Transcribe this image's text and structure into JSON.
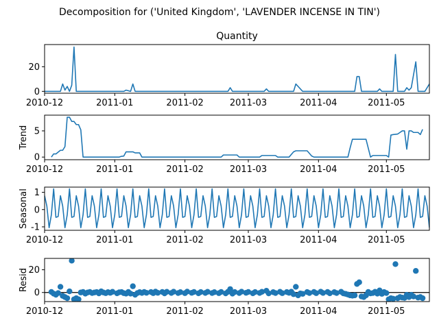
{
  "figure_title": "Decomposition for ('United Kingdom', 'LAVENDER INCENSE IN TIN')",
  "colors": {
    "line": "#1f77b4",
    "axis": "#000000",
    "zero_line": "#000000"
  },
  "x_tick_labels": [
    "2010-12",
    "2011-01",
    "2011-02",
    "2011-03",
    "2011-04",
    "2011-05"
  ],
  "chart_data": [
    {
      "type": "line",
      "title": "Quantity",
      "ylabel": "",
      "ylim": [
        -1.5,
        38
      ],
      "yticks": [
        0,
        20
      ],
      "xlim": [
        "2010-12-01",
        "2011-05-20"
      ],
      "x_ticks": [
        "2010-12-01",
        "2011-01-01",
        "2011-02-01",
        "2011-03-01",
        "2011-04-01",
        "2011-05-01"
      ],
      "points": [
        [
          "2010-12-01",
          0
        ],
        [
          "2010-12-08",
          0
        ],
        [
          "2010-12-09",
          6
        ],
        [
          "2010-12-10",
          1
        ],
        [
          "2010-12-11",
          4
        ],
        [
          "2010-12-12",
          0
        ],
        [
          "2010-12-13",
          5
        ],
        [
          "2010-12-14",
          36
        ],
        [
          "2010-12-15",
          0
        ],
        [
          "2011-01-05",
          0
        ],
        [
          "2011-01-06",
          1
        ],
        [
          "2011-01-08",
          0
        ],
        [
          "2011-01-09",
          6
        ],
        [
          "2011-01-10",
          0
        ],
        [
          "2011-02-20",
          0
        ],
        [
          "2011-02-21",
          3
        ],
        [
          "2011-02-22",
          0
        ],
        [
          "2011-03-08",
          0
        ],
        [
          "2011-03-09",
          2
        ],
        [
          "2011-03-10",
          0
        ],
        [
          "2011-03-21",
          0
        ],
        [
          "2011-03-22",
          6
        ],
        [
          "2011-03-25",
          0
        ],
        [
          "2011-04-17",
          0
        ],
        [
          "2011-04-18",
          12
        ],
        [
          "2011-04-19",
          12
        ],
        [
          "2011-04-20",
          0
        ],
        [
          "2011-04-27",
          0
        ],
        [
          "2011-04-28",
          2
        ],
        [
          "2011-04-29",
          0
        ],
        [
          "2011-05-04",
          0
        ],
        [
          "2011-05-05",
          30
        ],
        [
          "2011-05-06",
          0
        ],
        [
          "2011-05-09",
          0
        ],
        [
          "2011-05-10",
          3
        ],
        [
          "2011-05-11",
          1
        ],
        [
          "2011-05-12",
          3
        ],
        [
          "2011-05-14",
          24
        ],
        [
          "2011-05-15",
          0
        ],
        [
          "2011-05-18",
          0
        ],
        [
          "2011-05-20",
          6
        ]
      ]
    },
    {
      "type": "line",
      "title": "",
      "ylabel": "Trend",
      "ylim": [
        -0.5,
        8
      ],
      "yticks": [
        0,
        5
      ],
      "xlim": [
        "2010-12-01",
        "2011-05-20"
      ],
      "x_ticks": [
        "2010-12-01",
        "2011-01-01",
        "2011-02-01",
        "2011-03-01",
        "2011-04-01",
        "2011-05-01"
      ],
      "points": [
        [
          "2010-12-04",
          0
        ],
        [
          "2010-12-05",
          0.6
        ],
        [
          "2010-12-06",
          0.6
        ],
        [
          "2010-12-08",
          1.3
        ],
        [
          "2010-12-09",
          1.3
        ],
        [
          "2010-12-10",
          2.0
        ],
        [
          "2010-12-11",
          7.6
        ],
        [
          "2010-12-12",
          7.6
        ],
        [
          "2010-12-13",
          6.8
        ],
        [
          "2010-12-14",
          6.8
        ],
        [
          "2010-12-15",
          6.2
        ],
        [
          "2010-12-16",
          6.2
        ],
        [
          "2010-12-17",
          5.2
        ],
        [
          "2010-12-18",
          0
        ],
        [
          "2011-01-03",
          0
        ],
        [
          "2011-01-04",
          0.15
        ],
        [
          "2011-01-05",
          0.2
        ],
        [
          "2011-01-06",
          1.0
        ],
        [
          "2011-01-09",
          1.0
        ],
        [
          "2011-01-10",
          0.8
        ],
        [
          "2011-01-12",
          0.8
        ],
        [
          "2011-01-13",
          0
        ],
        [
          "2011-02-17",
          0
        ],
        [
          "2011-02-18",
          0.4
        ],
        [
          "2011-02-24",
          0.4
        ],
        [
          "2011-02-25",
          0
        ],
        [
          "2011-03-06",
          0
        ],
        [
          "2011-03-07",
          0.3
        ],
        [
          "2011-03-13",
          0.3
        ],
        [
          "2011-03-14",
          0
        ],
        [
          "2011-03-19",
          0
        ],
        [
          "2011-03-21",
          1.0
        ],
        [
          "2011-03-22",
          1.2
        ],
        [
          "2011-03-27",
          1.2
        ],
        [
          "2011-03-29",
          0.2
        ],
        [
          "2011-03-30",
          0
        ],
        [
          "2011-04-14",
          0
        ],
        [
          "2011-04-15",
          1.8
        ],
        [
          "2011-04-16",
          3.4
        ],
        [
          "2011-04-22",
          3.4
        ],
        [
          "2011-04-24",
          0
        ],
        [
          "2011-04-25",
          0.3
        ],
        [
          "2011-05-01",
          0.3
        ],
        [
          "2011-05-02",
          0
        ],
        [
          "2011-05-03",
          4.2
        ],
        [
          "2011-05-04",
          4.3
        ],
        [
          "2011-05-06",
          4.4
        ],
        [
          "2011-05-07",
          4.7
        ],
        [
          "2011-05-08",
          5.0
        ],
        [
          "2011-05-09",
          5.0
        ],
        [
          "2011-05-10",
          1.5
        ],
        [
          "2011-05-11",
          5.0
        ],
        [
          "2011-05-12",
          5.0
        ],
        [
          "2011-05-13",
          4.7
        ],
        [
          "2011-05-15",
          4.7
        ],
        [
          "2011-05-16",
          4.3
        ],
        [
          "2011-05-17",
          5.3
        ]
      ]
    },
    {
      "type": "line",
      "title": "",
      "ylabel": "Seasonal",
      "ylim": [
        -1.2,
        1.3
      ],
      "yticks": [
        -1,
        0,
        1
      ],
      "xlim": [
        "2010-12-01",
        "2011-05-20"
      ],
      "x_ticks": [
        "2010-12-01",
        "2011-01-01",
        "2011-02-01",
        "2011-03-01",
        "2011-04-01",
        "2011-05-01"
      ],
      "period_days": 7,
      "pattern_start": "2010-12-01",
      "pattern": [
        0.8,
        0.2,
        -1.05,
        -0.3,
        1.2,
        -0.45,
        -0.4
      ]
    },
    {
      "type": "scatter",
      "title": "",
      "ylabel": "Resid",
      "ylim": [
        -8,
        30
      ],
      "yticks": [
        0,
        20
      ],
      "zero_line": 0,
      "xlim": [
        "2010-12-01",
        "2011-05-20"
      ],
      "x_ticks": [
        "2010-12-01",
        "2011-01-01",
        "2011-02-01",
        "2011-03-01",
        "2011-04-01",
        "2011-05-01"
      ],
      "points": [
        [
          "2010-12-04",
          0.5
        ],
        [
          "2010-12-05",
          -1
        ],
        [
          "2010-12-06",
          -2
        ],
        [
          "2010-12-07",
          -0.5
        ],
        [
          "2010-12-08",
          5
        ],
        [
          "2010-12-09",
          -3
        ],
        [
          "2010-12-10",
          -4
        ],
        [
          "2010-12-11",
          -5
        ],
        [
          "2010-12-12",
          1
        ],
        [
          "2010-12-13",
          28
        ],
        [
          "2010-12-14",
          -6
        ],
        [
          "2010-12-15",
          -5
        ],
        [
          "2010-12-16",
          -6
        ],
        [
          "2010-12-17",
          0
        ],
        [
          "2010-12-18",
          0.5
        ],
        [
          "2010-12-19",
          -1
        ],
        [
          "2010-12-20",
          0
        ],
        [
          "2010-12-21",
          0.5
        ],
        [
          "2010-12-22",
          -0.5
        ],
        [
          "2010-12-23",
          0
        ],
        [
          "2010-12-24",
          0.4
        ],
        [
          "2010-12-25",
          -0.8
        ],
        [
          "2010-12-26",
          1
        ],
        [
          "2010-12-27",
          0
        ],
        [
          "2010-12-28",
          -0.6
        ],
        [
          "2010-12-29",
          0.3
        ],
        [
          "2010-12-30",
          -0.3
        ],
        [
          "2010-12-31",
          0.6
        ],
        [
          "2011-01-02",
          -0.7
        ],
        [
          "2011-01-03",
          0.2
        ],
        [
          "2011-01-04",
          0.4
        ],
        [
          "2011-01-05",
          -0.6
        ],
        [
          "2011-01-06",
          -1
        ],
        [
          "2011-01-07",
          0.5
        ],
        [
          "2011-01-08",
          -1
        ],
        [
          "2011-01-09",
          5.5
        ],
        [
          "2011-01-10",
          -2
        ],
        [
          "2011-01-11",
          -0.5
        ],
        [
          "2011-01-12",
          0.3
        ],
        [
          "2011-01-13",
          -0.4
        ],
        [
          "2011-01-14",
          0.5
        ],
        [
          "2011-01-15",
          -0.3
        ],
        [
          "2011-01-17",
          0.4
        ],
        [
          "2011-01-18",
          -0.6
        ],
        [
          "2011-01-19",
          0.8
        ],
        [
          "2011-01-20",
          -0.3
        ],
        [
          "2011-01-22",
          0.5
        ],
        [
          "2011-01-23",
          -0.8
        ],
        [
          "2011-01-24",
          0.6
        ],
        [
          "2011-01-26",
          -0.4
        ],
        [
          "2011-01-27",
          0.7
        ],
        [
          "2011-01-29",
          -0.5
        ],
        [
          "2011-01-30",
          0.3
        ],
        [
          "2011-02-01",
          -0.6
        ],
        [
          "2011-02-02",
          0.8
        ],
        [
          "2011-02-04",
          -0.3
        ],
        [
          "2011-02-05",
          0.5
        ],
        [
          "2011-02-07",
          -0.7
        ],
        [
          "2011-02-08",
          0.4
        ],
        [
          "2011-02-10",
          -0.4
        ],
        [
          "2011-02-11",
          0.6
        ],
        [
          "2011-02-13",
          -0.5
        ],
        [
          "2011-02-14",
          0.3
        ],
        [
          "2011-02-16",
          -0.6
        ],
        [
          "2011-02-17",
          0.5
        ],
        [
          "2011-02-19",
          -0.8
        ],
        [
          "2011-02-20",
          0.6
        ],
        [
          "2011-02-21",
          3
        ],
        [
          "2011-02-22",
          -1
        ],
        [
          "2011-02-23",
          0.4
        ],
        [
          "2011-02-25",
          -0.5
        ],
        [
          "2011-02-26",
          0.7
        ],
        [
          "2011-02-28",
          -0.3
        ],
        [
          "2011-03-01",
          0.5
        ],
        [
          "2011-03-03",
          -0.7
        ],
        [
          "2011-03-04",
          0.4
        ],
        [
          "2011-03-06",
          -0.4
        ],
        [
          "2011-03-07",
          0.6
        ],
        [
          "2011-03-09",
          1.5
        ],
        [
          "2011-03-10",
          -0.8
        ],
        [
          "2011-03-12",
          0.3
        ],
        [
          "2011-03-13",
          -0.5
        ],
        [
          "2011-03-15",
          0.6
        ],
        [
          "2011-03-16",
          -0.6
        ],
        [
          "2011-03-18",
          0.4
        ],
        [
          "2011-03-19",
          -0.3
        ],
        [
          "2011-03-20",
          0.7
        ],
        [
          "2011-03-21",
          -1.5
        ],
        [
          "2011-03-22",
          5
        ],
        [
          "2011-03-23",
          -2.5
        ],
        [
          "2011-03-24",
          -0.8
        ],
        [
          "2011-03-25",
          -1.2
        ],
        [
          "2011-03-27",
          0.4
        ],
        [
          "2011-03-28",
          -0.5
        ],
        [
          "2011-03-30",
          0.5
        ],
        [
          "2011-03-31",
          -0.6
        ],
        [
          "2011-04-02",
          0.7
        ],
        [
          "2011-04-03",
          -0.4
        ],
        [
          "2011-04-05",
          0.5
        ],
        [
          "2011-04-06",
          -0.7
        ],
        [
          "2011-04-08",
          0.3
        ],
        [
          "2011-04-09",
          -0.5
        ],
        [
          "2011-04-11",
          0.6
        ],
        [
          "2011-04-12",
          -0.8
        ],
        [
          "2011-04-13",
          -1.2
        ],
        [
          "2011-04-14",
          -1.8
        ],
        [
          "2011-04-15",
          -2.5
        ],
        [
          "2011-04-16",
          -2.8
        ],
        [
          "2011-04-17",
          -2.5
        ],
        [
          "2011-04-18",
          7.5
        ],
        [
          "2011-04-19",
          9
        ],
        [
          "2011-04-20",
          -3.5
        ],
        [
          "2011-04-21",
          -4
        ],
        [
          "2011-04-22",
          -2.5
        ],
        [
          "2011-04-23",
          0.5
        ],
        [
          "2011-04-24",
          -0.8
        ],
        [
          "2011-04-25",
          -0.5
        ],
        [
          "2011-04-26",
          0.6
        ],
        [
          "2011-04-27",
          -1
        ],
        [
          "2011-04-28",
          1.8
        ],
        [
          "2011-04-29",
          -1.2
        ],
        [
          "2011-04-30",
          0.4
        ],
        [
          "2011-05-01",
          -0.5
        ],
        [
          "2011-05-02",
          -6
        ],
        [
          "2011-05-03",
          -5
        ],
        [
          "2011-05-04",
          -5.5
        ],
        [
          "2011-05-05",
          25
        ],
        [
          "2011-05-06",
          -5
        ],
        [
          "2011-05-07",
          -4
        ],
        [
          "2011-05-08",
          -4.5
        ],
        [
          "2011-05-09",
          -4.8
        ],
        [
          "2011-05-10",
          -2
        ],
        [
          "2011-05-11",
          -4
        ],
        [
          "2011-05-12",
          -2
        ],
        [
          "2011-05-13",
          -3.5
        ],
        [
          "2011-05-14",
          19
        ],
        [
          "2011-05-15",
          -4.5
        ],
        [
          "2011-05-16",
          -4
        ],
        [
          "2011-05-17",
          -5
        ]
      ]
    }
  ]
}
